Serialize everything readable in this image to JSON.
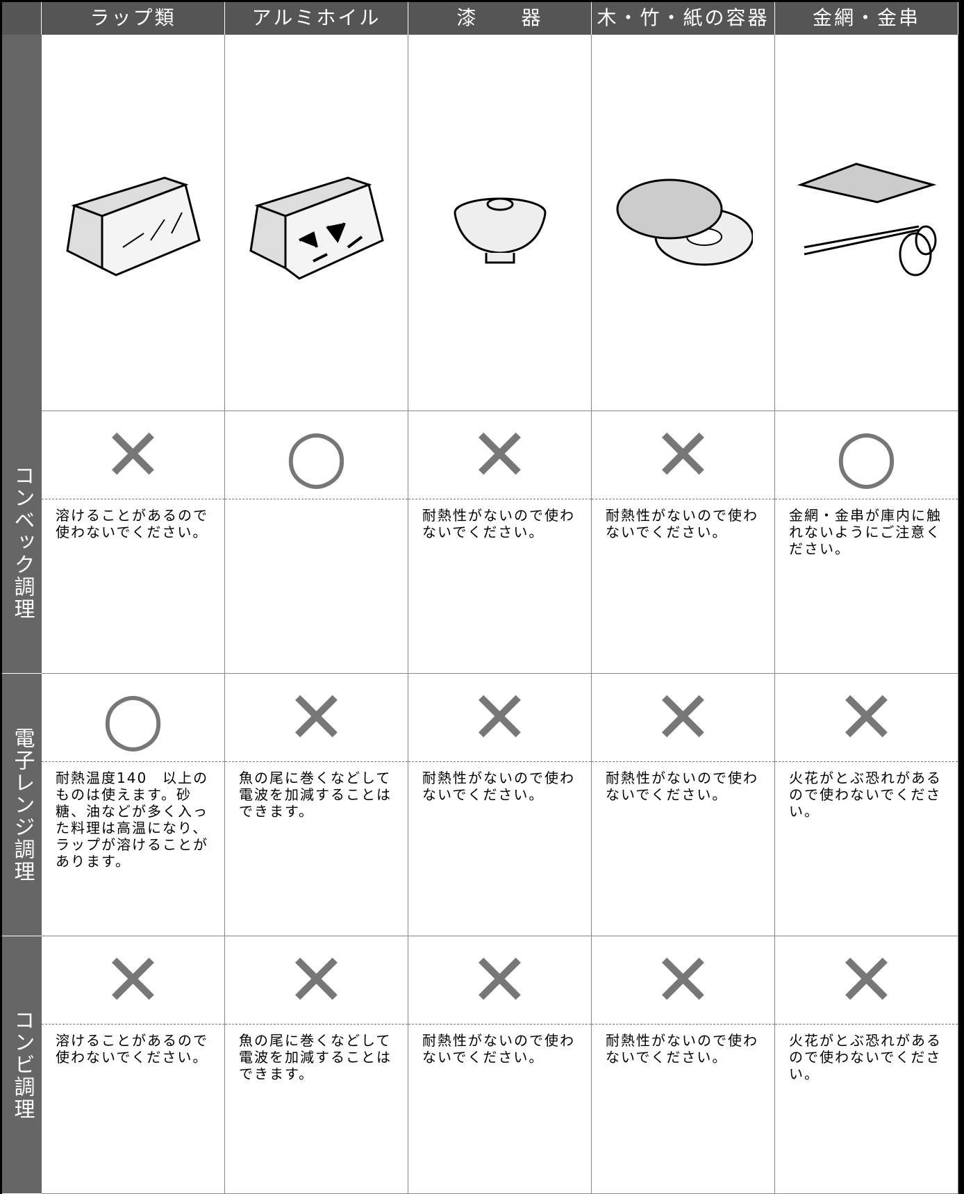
{
  "header": {
    "columns": [
      "ラップ類",
      "アルミホイル",
      "漆　　器",
      "木・竹・紙の容器",
      "金網・金串"
    ]
  },
  "rows": [
    {
      "label": "コンベック調理",
      "cells": [
        {
          "mark": "✕",
          "note": "溶けることがあるので使わないでください。"
        },
        {
          "mark": "○"
        },
        {
          "mark": "✕",
          "note": "耐熱性がないので使わないでください。"
        },
        {
          "mark": "✕",
          "note": "耐熱性がないので使わないでください。"
        },
        {
          "mark": "○",
          "note": "金網・金串が庫内に触れないようにご注意ください。"
        }
      ]
    },
    {
      "label": "電子レンジ調理",
      "cells": [
        {
          "mark": "○",
          "note": "耐熱温度140　以上のものは使えます。砂糖、油などが多く入った料理は高温になり、ラップが溶けることがあります。"
        },
        {
          "mark": "✕",
          "note": "魚の尾に巻くなどして電波を加減することはできます。"
        },
        {
          "mark": "✕",
          "note": "耐熱性がないので使わないでください。"
        },
        {
          "mark": "✕",
          "note": "耐熱性がないので使わないでください。"
        },
        {
          "mark": "✕",
          "note": "火花がとぶ恐れがあるので使わないでください。"
        }
      ]
    },
    {
      "label": "コンビ調理",
      "cells": [
        {
          "mark": "✕",
          "note": "溶けることがあるので使わないでください。"
        },
        {
          "mark": "✕",
          "note": "魚の尾に巻くなどして電波を加減することはできます。"
        },
        {
          "mark": "✕",
          "note": "耐熱性がないので使わないでください。"
        },
        {
          "mark": "✕",
          "note": "耐熱性がないので使わないでください。"
        },
        {
          "mark": "✕",
          "note": "火花がとぶ恐れがあるので使わないでください。"
        }
      ]
    }
  ]
}
